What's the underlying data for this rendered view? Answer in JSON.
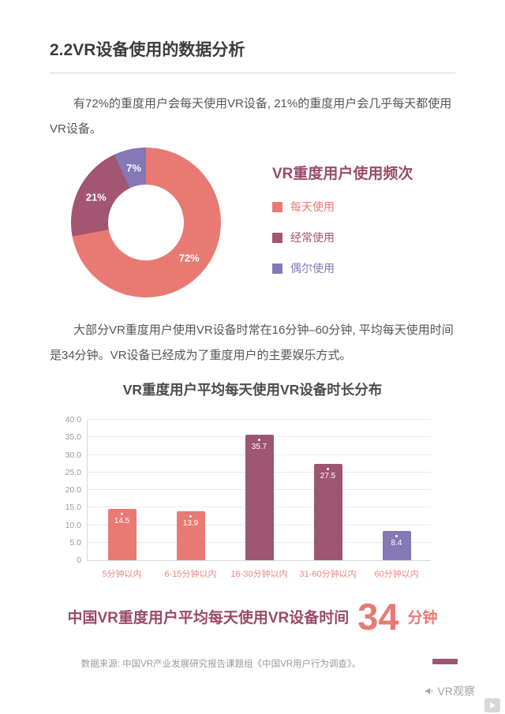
{
  "page_title": "2.2VR设备使用的数据分析",
  "paragraphs": {
    "p1": "有72%的重度用户会每天使用VR设备, 21%的重度用户会几乎每天都使用VR设备。",
    "p2": "大部分VR重度用户使用VR设备时常在16分钟–60分钟, 平均每天使用时间是34分钟。VR设备已经成为了重度用户的主要娱乐方式。"
  },
  "highlight": {
    "prefix": "中国VR重度用户平均每天使用VR设备时间",
    "value": "34",
    "unit": "分钟"
  },
  "footer": {
    "source": "数据来源: 中国VR产业发展研究报告课题组《中国VR用户行为调查》。"
  },
  "brand": {
    "name": "VR观察",
    "icon": "megaphone-icon"
  },
  "colors": {
    "salmon": "#E97A73",
    "berry": "#9D5571",
    "purple": "#8478B6",
    "title_berry": "#9A4A68",
    "x_label_salmon": "#EC8680"
  },
  "chart_data": [
    {
      "type": "pie",
      "donut": true,
      "title": "VR重度用户使用频次",
      "labels": [
        "每天使用",
        "经常使用",
        "偶尔使用"
      ],
      "values": [
        72,
        21,
        7
      ],
      "value_labels": [
        "72%",
        "21%",
        "7%"
      ],
      "colors": [
        "#E97A73",
        "#A25672",
        "#8478B6"
      ],
      "legend_position": "right",
      "start_angle": "top",
      "direction": "clockwise"
    },
    {
      "type": "bar",
      "title": "VR重度用户平均每天使用VR设备时长分布",
      "categories": [
        "5分钟以内",
        "6-15分钟以内",
        "16-30分钟以内",
        "31-60分钟以内",
        "60分钟以内"
      ],
      "values": [
        14.5,
        13.9,
        35.7,
        27.5,
        8.4
      ],
      "bar_colors": [
        "#E97A73",
        "#E97A73",
        "#9D5571",
        "#9D5571",
        "#8478B6"
      ],
      "ylim": [
        0,
        40
      ],
      "ytick_labels": [
        "0",
        "5.0",
        "10.0",
        "15.0",
        "20.0",
        "25.0",
        "30.0",
        "35.0",
        "40.0"
      ],
      "grid": true,
      "xlabel": "",
      "ylabel": ""
    }
  ]
}
